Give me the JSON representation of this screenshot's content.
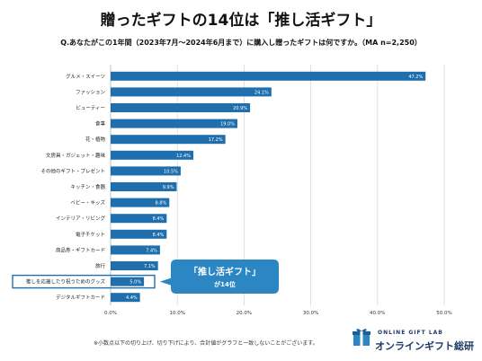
{
  "title": "贈ったギフトの14位は「推し活ギフト」",
  "subtitle": "Q.あなたがこの1年間（2023年7月〜2024年6月まで）に購入し贈ったギフトは何ですか。（MA n=2,250）",
  "colors": {
    "bar": "#1f6fae",
    "highlight_border": "#1f6fae",
    "callout": "#2d86c4",
    "grid": "#d9d9d9"
  },
  "callout": {
    "line1": "「推し活ギフト」",
    "line2": "が14位"
  },
  "footnote": "※小数点以下の切り上げ、切り下げにより、合計値がグラフと一致しないことがございます。",
  "brand": {
    "small": "ONLINE GIFT LAB",
    "name": "オンラインギフト総研",
    "icon": "gift-box-icon"
  },
  "chart_data": {
    "type": "bar",
    "orientation": "horizontal",
    "categories": [
      "グルメ・スイーツ",
      "ファッション",
      "ビューティー",
      "食事",
      "花・植物",
      "文房具・ガジェット・趣味",
      "その他のギフト・プレゼント",
      "キッチン・食器",
      "ベビー・キッズ",
      "インテリア・リビング",
      "電子チケット",
      "商品券・ギフトカード",
      "旅行",
      "推しを応援したり祝うためのグッズ",
      "デジタルギフトカード"
    ],
    "values": [
      47.2,
      24.1,
      20.9,
      19.0,
      17.2,
      12.4,
      10.5,
      9.9,
      8.8,
      8.4,
      8.4,
      7.4,
      7.1,
      5.0,
      4.4
    ],
    "value_labels": [
      "47.2%",
      "24.1%",
      "20.9%",
      "19.0%",
      "17.2%",
      "12.4%",
      "10.5%",
      "9.9%",
      "8.8%",
      "8.4%",
      "8.4%",
      "7.4%",
      "7.1%",
      "5.0%",
      "4.4%"
    ],
    "highlight_category": "推しを応援したり祝うためのグッズ",
    "xlim": [
      0,
      50
    ],
    "xticks": [
      0,
      10,
      20,
      30,
      40,
      50
    ],
    "xtick_labels": [
      "0.0%",
      "10.0%",
      "20.0%",
      "30.0%",
      "40.0%",
      "50.0%"
    ],
    "grid": true,
    "legend": "none"
  }
}
